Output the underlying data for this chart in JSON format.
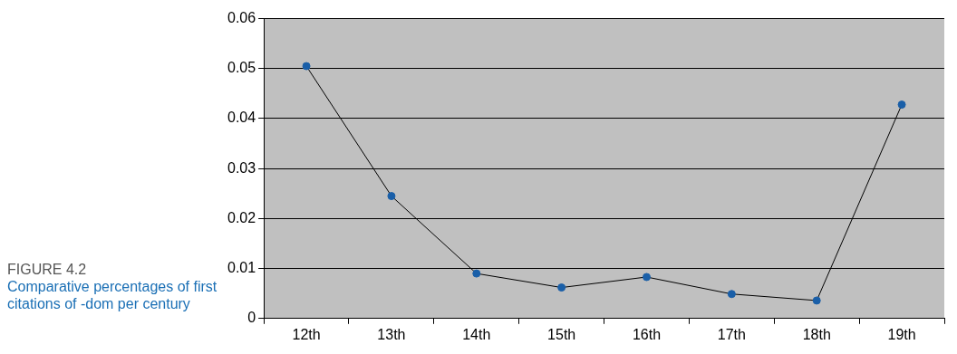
{
  "chart_data": {
    "type": "line",
    "title": "FIGURE 4.2",
    "subtitle": "Comparative percentages of first citations of -dom per century",
    "categories": [
      "12th",
      "13th",
      "14th",
      "15th",
      "16th",
      "17th",
      "18th",
      "19th"
    ],
    "series": [
      {
        "color": "#1a5fa8",
        "values": [
          0.0505,
          0.0245,
          0.009,
          0.0062,
          0.0083,
          0.0049,
          0.0036,
          0.0428
        ]
      }
    ],
    "ylim": [
      0,
      0.06
    ],
    "yticks": [
      0,
      0.01,
      0.02,
      0.03,
      0.04,
      0.05,
      0.06
    ],
    "grid": "y",
    "legend": false,
    "marker": "circle",
    "line_style": "solid"
  }
}
